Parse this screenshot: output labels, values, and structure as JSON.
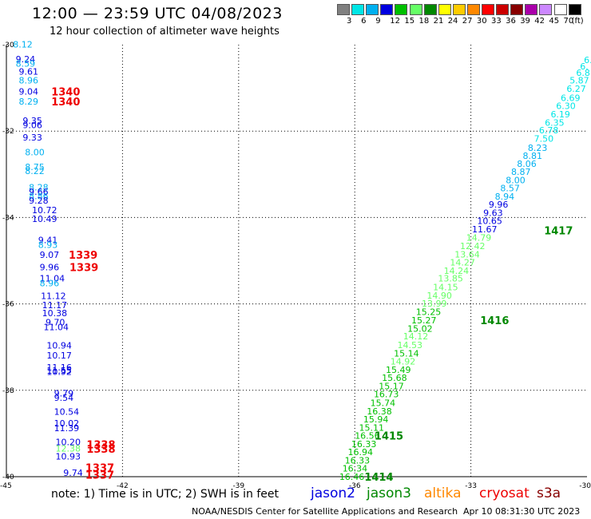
{
  "header": {
    "title": "12:00 — 23:59 UTC 04/08/2023",
    "subtitle": "12 hour collection of altimeter wave heights"
  },
  "color_scale": {
    "labels": [
      "3",
      "6",
      "9",
      "12",
      "15",
      "18",
      "21",
      "24",
      "27",
      "30",
      "33",
      "36",
      "39",
      "42",
      "45",
      "70",
      "(ft)"
    ],
    "colors": [
      "#808080",
      "#00e6e6",
      "#00b0f0",
      "#0000e0",
      "#00c000",
      "#66ff66",
      "#008800",
      "#ffff00",
      "#ffcc00",
      "#ff8800",
      "#ff0000",
      "#cc0000",
      "#880000",
      "#aa00aa",
      "#cc88ff",
      "#ffffff",
      "#000000"
    ]
  },
  "chart_data": {
    "type": "scatter",
    "xlim": [
      -45,
      -30
    ],
    "ylim": [
      -40,
      -30
    ],
    "x_ticks": [
      "-45",
      "-42",
      "-39",
      "-36",
      "-33",
      "-30"
    ],
    "y_ticks": [
      "-30",
      "-32",
      "-34",
      "-36",
      "-38",
      "-40"
    ],
    "grid": true,
    "grid_x": [
      -42,
      -39,
      -36,
      -33
    ],
    "grid_y": [
      -32,
      -34,
      -36,
      -38
    ],
    "tracks": [
      {
        "satellite": "jason3",
        "color": "#008800",
        "time_labels": [
          {
            "text": "1340",
            "lon": -43.84,
            "lat": -31.08,
            "color": "#ee0000"
          },
          {
            "text": "1340",
            "lon": -43.84,
            "lat": -31.31,
            "color": "#ee0000"
          },
          {
            "text": "1339",
            "lon": -43.39,
            "lat": -34.86,
            "color": "#ee0000"
          },
          {
            "text": "1339",
            "lon": -43.37,
            "lat": -35.15,
            "color": "#ee0000"
          },
          {
            "text": "1338",
            "lon": -42.93,
            "lat": -39.25,
            "color": "#ee0000"
          },
          {
            "text": "1338",
            "lon": -42.93,
            "lat": -39.35,
            "color": "#ee0000"
          },
          {
            "text": "1337",
            "lon": -42.96,
            "lat": -39.79,
            "color": "#ee0000"
          },
          {
            "text": "1337",
            "lon": -42.96,
            "lat": -39.95,
            "color": "#ee0000"
          }
        ]
      },
      {
        "satellite": "jason3",
        "color": "#008800",
        "time_labels": [
          {
            "text": "1417",
            "lon": -31.11,
            "lat": -34.3
          },
          {
            "text": "1416",
            "lon": -32.76,
            "lat": -36.38
          },
          {
            "text": "1415",
            "lon": -35.49,
            "lat": -39.05
          },
          {
            "text": "1414",
            "lon": -35.75,
            "lat": -40.0
          }
        ]
      }
    ],
    "points": [
      {
        "v": "8.12",
        "lon": -44.83,
        "lat": -29.99,
        "c": "#00b0f0"
      },
      {
        "v": "9.24",
        "lon": -44.76,
        "lat": -30.33,
        "c": "#0000e0"
      },
      {
        "v": "8.59",
        "lon": -44.76,
        "lat": -30.43,
        "c": "#00b0f0"
      },
      {
        "v": "9.61",
        "lon": -44.68,
        "lat": -30.62,
        "c": "#0000e0"
      },
      {
        "v": "8.96",
        "lon": -44.68,
        "lat": -30.82,
        "c": "#00b0f0"
      },
      {
        "v": "9.04",
        "lon": -44.68,
        "lat": -31.08,
        "c": "#0000e0"
      },
      {
        "v": "8.29",
        "lon": -44.68,
        "lat": -31.31,
        "c": "#00b0f0"
      },
      {
        "v": "9.35",
        "lon": -44.58,
        "lat": -31.76,
        "c": "#0000e0"
      },
      {
        "v": "9.06",
        "lon": -44.58,
        "lat": -31.86,
        "c": "#0000e0"
      },
      {
        "v": "9.33",
        "lon": -44.58,
        "lat": -32.14,
        "c": "#0000e0"
      },
      {
        "v": "8.00",
        "lon": -44.52,
        "lat": -32.49,
        "c": "#00b0f0"
      },
      {
        "v": "8.75",
        "lon": -44.52,
        "lat": -32.83,
        "c": "#00b0f0"
      },
      {
        "v": "8.22",
        "lon": -44.52,
        "lat": -32.92,
        "c": "#00b0f0"
      },
      {
        "v": "8.28",
        "lon": -44.42,
        "lat": -33.3,
        "c": "#00b0f0"
      },
      {
        "v": "9.66",
        "lon": -44.42,
        "lat": -33.4,
        "c": "#0000e0"
      },
      {
        "v": "8.86",
        "lon": -44.42,
        "lat": -33.5,
        "c": "#00b0f0"
      },
      {
        "v": "9.28",
        "lon": -44.42,
        "lat": -33.6,
        "c": "#0000e0"
      },
      {
        "v": "10.72",
        "lon": -44.34,
        "lat": -33.83,
        "c": "#0000e0"
      },
      {
        "v": "10.49",
        "lon": -44.34,
        "lat": -34.03,
        "c": "#0000e0"
      },
      {
        "v": "9.41",
        "lon": -44.18,
        "lat": -34.52,
        "c": "#0000e0"
      },
      {
        "v": "8.93",
        "lon": -44.18,
        "lat": -34.63,
        "c": "#00b0f0"
      },
      {
        "v": "9.07",
        "lon": -44.14,
        "lat": -34.86,
        "c": "#0000e0"
      },
      {
        "v": "9.96",
        "lon": -44.14,
        "lat": -35.15,
        "c": "#0000e0"
      },
      {
        "v": "11.04",
        "lon": -44.14,
        "lat": -35.41,
        "c": "#0000e0"
      },
      {
        "v": "8.96",
        "lon": -44.14,
        "lat": -35.52,
        "c": "#00b0f0"
      },
      {
        "v": "11.12",
        "lon": -44.11,
        "lat": -35.81,
        "c": "#0000e0"
      },
      {
        "v": "11.17",
        "lon": -44.08,
        "lat": -36.03,
        "c": "#0000e0"
      },
      {
        "v": "10.38",
        "lon": -44.08,
        "lat": -36.21,
        "c": "#0000e0"
      },
      {
        "v": "9.70",
        "lon": -43.99,
        "lat": -36.42,
        "c": "#0000e0"
      },
      {
        "v": "11.04",
        "lon": -44.04,
        "lat": -36.53,
        "c": "#0000e0"
      },
      {
        "v": "10.94",
        "lon": -43.96,
        "lat": -36.96,
        "c": "#0000e0"
      },
      {
        "v": "10.17",
        "lon": -43.96,
        "lat": -37.19,
        "c": "#0000e0"
      },
      {
        "v": "11.16",
        "lon": -43.96,
        "lat": -37.47,
        "c": "#0000e0"
      },
      {
        "v": "11.55",
        "lon": -43.96,
        "lat": -37.54,
        "c": "#0000e0"
      },
      {
        "v": "10.92",
        "lon": -43.96,
        "lat": -37.57,
        "c": "#0000e0"
      },
      {
        "v": "9.79",
        "lon": -43.77,
        "lat": -38.07,
        "c": "#0000e0"
      },
      {
        "v": "9.54",
        "lon": -43.77,
        "lat": -38.17,
        "c": "#0000e0"
      },
      {
        "v": "10.54",
        "lon": -43.77,
        "lat": -38.49,
        "c": "#0000e0"
      },
      {
        "v": "10.02",
        "lon": -43.77,
        "lat": -38.76,
        "c": "#0000e0"
      },
      {
        "v": "11.39",
        "lon": -43.77,
        "lat": -38.87,
        "c": "#0000e0"
      },
      {
        "v": "10.20",
        "lon": -43.73,
        "lat": -39.2,
        "c": "#0000e0"
      },
      {
        "v": "12.38",
        "lon": -43.73,
        "lat": -39.34,
        "c": "#66ff66"
      },
      {
        "v": "10.93",
        "lon": -43.73,
        "lat": -39.53,
        "c": "#0000e0"
      },
      {
        "v": "9.74",
        "lon": -43.53,
        "lat": -39.91,
        "c": "#0000e0"
      },
      {
        "v": "6.",
        "lon": -30.08,
        "lat": -30.35,
        "c": "#00e6e6"
      },
      {
        "v": "6.",
        "lon": -30.18,
        "lat": -30.5,
        "c": "#00e6e6"
      },
      {
        "v": "6.8",
        "lon": -30.28,
        "lat": -30.65,
        "c": "#00e6e6"
      },
      {
        "v": "5.87",
        "lon": -30.45,
        "lat": -30.82,
        "c": "#00e6e6"
      },
      {
        "v": "6.27",
        "lon": -30.53,
        "lat": -31.02,
        "c": "#00e6e6"
      },
      {
        "v": "6.69",
        "lon": -30.68,
        "lat": -31.23,
        "c": "#00e6e6"
      },
      {
        "v": "6.30",
        "lon": -30.8,
        "lat": -31.41,
        "c": "#00e6e6"
      },
      {
        "v": "6.19",
        "lon": -30.94,
        "lat": -31.61,
        "c": "#00e6e6"
      },
      {
        "v": "6.35",
        "lon": -31.09,
        "lat": -31.8,
        "c": "#00e6e6"
      },
      {
        "v": "6.78",
        "lon": -31.24,
        "lat": -31.98,
        "c": "#00e6e6"
      },
      {
        "v": "7.50",
        "lon": -31.37,
        "lat": -32.17,
        "c": "#00e6e6"
      },
      {
        "v": "8.23",
        "lon": -31.53,
        "lat": -32.38,
        "c": "#00b0f0"
      },
      {
        "v": "8.81",
        "lon": -31.66,
        "lat": -32.57,
        "c": "#00b0f0"
      },
      {
        "v": "8.06",
        "lon": -31.81,
        "lat": -32.75,
        "c": "#00b0f0"
      },
      {
        "v": "8.87",
        "lon": -31.96,
        "lat": -32.94,
        "c": "#00b0f0"
      },
      {
        "v": "8.00",
        "lon": -32.1,
        "lat": -33.13,
        "c": "#00b0f0"
      },
      {
        "v": "8.57",
        "lon": -32.24,
        "lat": -33.32,
        "c": "#00b0f0"
      },
      {
        "v": "8.94",
        "lon": -32.38,
        "lat": -33.51,
        "c": "#00b0f0"
      },
      {
        "v": "9.96",
        "lon": -32.54,
        "lat": -33.7,
        "c": "#0000e0"
      },
      {
        "v": "9.63",
        "lon": -32.68,
        "lat": -33.89,
        "c": "#0000e0"
      },
      {
        "v": "10.65",
        "lon": -32.84,
        "lat": -34.08,
        "c": "#0000e0"
      },
      {
        "v": "11.67",
        "lon": -32.97,
        "lat": -34.27,
        "c": "#0000e0"
      },
      {
        "v": "14.79",
        "lon": -33.12,
        "lat": -34.46,
        "c": "#66ff66"
      },
      {
        "v": "12.42",
        "lon": -33.28,
        "lat": -34.66,
        "c": "#66ff66"
      },
      {
        "v": "13.64",
        "lon": -33.42,
        "lat": -34.85,
        "c": "#66ff66"
      },
      {
        "v": "14.27",
        "lon": -33.54,
        "lat": -35.04,
        "c": "#66ff66"
      },
      {
        "v": "14.24",
        "lon": -33.7,
        "lat": -35.23,
        "c": "#66ff66"
      },
      {
        "v": "13.85",
        "lon": -33.85,
        "lat": -35.41,
        "c": "#66ff66"
      },
      {
        "v": "14.15",
        "lon": -33.98,
        "lat": -35.61,
        "c": "#66ff66"
      },
      {
        "v": "14.90",
        "lon": -34.14,
        "lat": -35.8,
        "c": "#66ff66"
      },
      {
        "v": "13.99",
        "lon": -34.27,
        "lat": -35.99,
        "c": "#66ff66"
      },
      {
        "v": "15.25",
        "lon": -34.42,
        "lat": -36.18,
        "c": "#00c000"
      },
      {
        "v": "15.27",
        "lon": -34.54,
        "lat": -36.38,
        "c": "#00c000"
      },
      {
        "v": "15.02",
        "lon": -34.64,
        "lat": -36.57,
        "c": "#00c000"
      },
      {
        "v": "14.12",
        "lon": -34.75,
        "lat": -36.75,
        "c": "#66ff66"
      },
      {
        "v": "14.53",
        "lon": -34.9,
        "lat": -36.95,
        "c": "#66ff66"
      },
      {
        "v": "15.14",
        "lon": -34.99,
        "lat": -37.14,
        "c": "#00c000"
      },
      {
        "v": "14.92",
        "lon": -35.08,
        "lat": -37.33,
        "c": "#66ff66"
      },
      {
        "v": "15.49",
        "lon": -35.2,
        "lat": -37.52,
        "c": "#00c000"
      },
      {
        "v": "15.68",
        "lon": -35.3,
        "lat": -37.71,
        "c": "#00c000"
      },
      {
        "v": "15.17",
        "lon": -35.38,
        "lat": -37.9,
        "c": "#00c000"
      },
      {
        "v": "16.73",
        "lon": -35.51,
        "lat": -38.09,
        "c": "#00c000"
      },
      {
        "v": "15.74",
        "lon": -35.6,
        "lat": -38.29,
        "c": "#00c000"
      },
      {
        "v": "16.38",
        "lon": -35.69,
        "lat": -38.48,
        "c": "#00c000"
      },
      {
        "v": "15.94",
        "lon": -35.78,
        "lat": -38.67,
        "c": "#00c000"
      },
      {
        "v": "15.11",
        "lon": -35.89,
        "lat": -38.86,
        "c": "#00c000"
      },
      {
        "v": "16.56",
        "lon": -36.0,
        "lat": -39.05,
        "c": "#00c000"
      },
      {
        "v": "16.33",
        "lon": -36.09,
        "lat": -39.24,
        "c": "#00c000"
      },
      {
        "v": "16.94",
        "lon": -36.18,
        "lat": -39.43,
        "c": "#00c000"
      },
      {
        "v": "16.33",
        "lon": -36.26,
        "lat": -39.62,
        "c": "#00c000"
      },
      {
        "v": "16.34",
        "lon": -36.32,
        "lat": -39.81,
        "c": "#00c000"
      },
      {
        "v": "16.46",
        "lon": -36.4,
        "lat": -40.0,
        "c": "#00c000"
      }
    ]
  },
  "note": "note: 1) Time is in UTC; 2) SWH is in feet",
  "legend": {
    "items": [
      {
        "name": "jason2",
        "color": "#0000e0"
      },
      {
        "name": "jason3",
        "color": "#008800"
      },
      {
        "name": "altika",
        "color": "#ff8800"
      },
      {
        "name": "cryosat",
        "color": "#ee0000"
      },
      {
        "name": "s3a",
        "color": "#880000"
      }
    ]
  },
  "footer": {
    "credit": "NOAA/NESDIS Center for Satellite Applications and Research",
    "timestamp": "Apr 10 08:31:30 UTC 2023"
  }
}
